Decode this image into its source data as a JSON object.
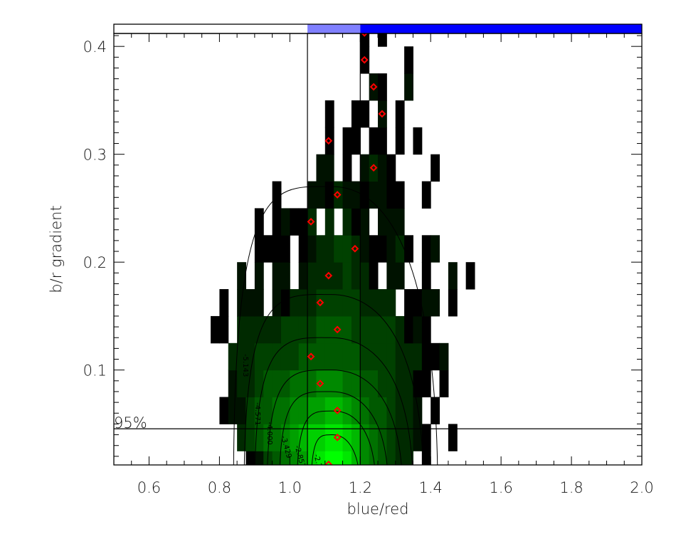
{
  "chart_data": {
    "type": "heatmap",
    "title": "",
    "xlabel": "blue/red",
    "ylabel": "b/r gradient",
    "xlim": [
      0.5,
      2.0
    ],
    "ylim": [
      0.012,
      0.412
    ],
    "x_ticks": [
      0.6,
      0.8,
      1.0,
      1.2,
      1.4,
      1.6,
      1.8,
      2.0
    ],
    "x_tick_labels": [
      "0.6",
      "0.8",
      "1.0",
      "1.2",
      "1.4",
      "1.6",
      "1.8",
      "2.0"
    ],
    "x_minor_step": 0.05,
    "y_ticks": [
      0.1,
      0.2,
      0.3,
      0.4
    ],
    "y_tick_labels": [
      "0.1",
      "0.2",
      "0.3",
      "0.4"
    ],
    "y_minor_step": 0.01,
    "bins": {
      "x_start": 0.775,
      "x_width": 0.025,
      "y_start": 0.0,
      "y_height": 0.025
    },
    "grid_rows_bottom_to_top": [
      [
        0,
        0,
        0,
        0,
        1,
        2,
        4,
        5,
        6,
        7,
        8,
        10,
        11,
        12,
        12,
        11,
        9,
        7,
        6,
        5,
        4,
        3,
        3,
        0,
        1,
        0,
        0,
        0,
        0,
        0
      ],
      [
        0,
        0,
        0,
        3,
        4,
        5,
        6,
        6,
        7,
        8,
        9,
        10,
        10,
        11,
        11,
        10,
        9,
        7,
        6,
        5,
        4,
        3,
        3,
        2,
        1,
        0,
        0,
        1,
        0,
        0
      ],
      [
        0,
        1,
        2,
        2,
        4,
        5,
        5,
        6,
        6,
        7,
        7,
        8,
        8,
        9,
        9,
        8,
        7,
        6,
        5,
        5,
        4,
        3,
        3,
        2,
        0,
        1,
        0,
        0,
        0,
        0
      ],
      [
        0,
        0,
        2,
        3,
        3,
        4,
        5,
        5,
        5,
        6,
        6,
        6,
        7,
        7,
        7,
        6,
        6,
        5,
        5,
        4,
        4,
        3,
        3,
        1,
        1,
        0,
        1,
        0,
        0,
        0
      ],
      [
        0,
        0,
        3,
        3,
        3,
        4,
        4,
        4,
        4,
        4,
        5,
        5,
        5,
        5,
        5,
        5,
        5,
        4,
        4,
        4,
        4,
        3,
        3,
        3,
        1,
        1,
        2,
        0,
        0,
        0
      ],
      [
        1,
        1,
        0,
        3,
        3,
        3,
        3,
        3,
        4,
        4,
        4,
        4,
        5,
        5,
        5,
        5,
        4,
        4,
        4,
        4,
        4,
        3,
        1,
        2,
        1,
        0,
        0,
        0,
        0,
        0
      ],
      [
        0,
        1,
        0,
        2,
        2,
        2,
        0,
        2,
        1,
        3,
        3,
        3,
        4,
        4,
        4,
        4,
        4,
        3,
        3,
        3,
        3,
        0,
        1,
        1,
        2,
        2,
        0,
        1,
        0,
        0
      ],
      [
        0,
        0,
        0,
        2,
        0,
        2,
        0,
        2,
        2,
        0,
        2,
        3,
        3,
        3,
        3,
        4,
        3,
        3,
        1,
        0,
        2,
        2,
        0,
        0,
        1,
        0,
        0,
        2,
        0,
        1
      ],
      [
        0,
        0,
        0,
        0,
        0,
        1,
        1,
        1,
        1,
        0,
        1,
        2,
        3,
        3,
        4,
        4,
        3,
        2,
        1,
        1,
        2,
        3,
        1,
        0,
        1,
        2,
        0,
        0,
        0,
        0
      ],
      [
        0,
        0,
        0,
        0,
        0,
        1,
        0,
        1,
        2,
        1,
        1,
        3,
        0,
        3,
        0,
        3,
        1,
        2,
        0,
        2,
        2,
        2,
        0,
        0,
        0,
        0,
        0,
        0,
        0,
        0
      ],
      [
        0,
        0,
        0,
        0,
        0,
        0,
        0,
        1,
        0,
        0,
        0,
        2,
        2,
        1,
        3,
        2,
        2,
        1,
        2,
        2,
        1,
        1,
        0,
        0,
        1,
        0,
        0,
        0,
        0,
        0
      ],
      [
        0,
        0,
        0,
        0,
        0,
        0,
        0,
        0,
        0,
        0,
        0,
        0,
        2,
        2,
        0,
        1,
        0,
        2,
        3,
        2,
        1,
        0,
        0,
        0,
        0,
        1,
        0,
        0,
        0,
        0
      ],
      [
        0,
        0,
        0,
        0,
        0,
        0,
        0,
        0,
        0,
        0,
        0,
        0,
        0,
        1,
        0,
        1,
        1,
        0,
        1,
        1,
        0,
        1,
        0,
        1,
        0,
        0,
        0,
        0,
        0,
        0
      ],
      [
        0,
        0,
        0,
        0,
        0,
        0,
        0,
        0,
        0,
        0,
        0,
        0,
        0,
        1,
        0,
        0,
        1,
        1,
        0,
        2,
        0,
        1,
        0,
        0,
        0,
        0,
        0,
        0,
        0,
        0
      ],
      [
        0,
        0,
        0,
        0,
        0,
        0,
        0,
        0,
        0,
        0,
        0,
        0,
        0,
        0,
        0,
        0,
        0,
        0,
        2,
        1,
        0,
        0,
        2,
        0,
        0,
        0,
        0,
        0,
        0,
        0
      ],
      [
        0,
        0,
        0,
        0,
        0,
        0,
        0,
        0,
        0,
        0,
        0,
        0,
        0,
        0,
        0,
        0,
        0,
        1,
        0,
        0,
        0,
        0,
        1,
        0,
        0,
        0,
        0,
        0,
        0,
        0
      ],
      [
        0,
        0,
        0,
        0,
        0,
        0,
        0,
        0,
        0,
        0,
        0,
        0,
        0,
        0,
        0,
        0,
        0,
        1,
        0,
        1,
        0,
        0,
        0,
        0,
        0,
        0,
        0,
        0,
        0,
        0
      ]
    ],
    "medians": {
      "x": [
        1.11,
        1.135,
        1.135,
        1.086,
        1.06,
        1.135,
        1.086,
        1.11,
        1.185,
        1.06,
        1.135,
        1.238,
        1.11,
        1.262,
        1.238,
        1.212,
        1.212
      ],
      "y": [
        0.0125,
        0.0375,
        0.0625,
        0.0875,
        0.1125,
        0.1375,
        0.1625,
        0.1875,
        0.2125,
        0.2375,
        0.2625,
        0.2875,
        0.3125,
        0.3375,
        0.3625,
        0.3875,
        0.4125
      ]
    },
    "contours": [
      {
        "label": "-5.143",
        "x_range": [
          0.84,
          1.42
        ],
        "peak_y": 0.27
      },
      {
        "label": "-4.571",
        "x_range": [
          0.87,
          1.38
        ],
        "peak_y": 0.17
      },
      {
        "label": "-4.000",
        "x_range": [
          0.9,
          1.35
        ],
        "peak_y": 0.13
      },
      {
        "label": "-3.429",
        "x_range": [
          0.935,
          1.32
        ],
        "peak_y": 0.1
      },
      {
        "label": "-2.857",
        "x_range": [
          0.97,
          1.28
        ],
        "peak_y": 0.08
      },
      {
        "label": "-2.286",
        "x_range": [
          1.02,
          1.245
        ],
        "peak_y": 0.062
      },
      {
        "label": "",
        "x_range": [
          1.06,
          1.2
        ],
        "peak_y": 0.04
      }
    ],
    "vertical_lines": [
      1.05,
      1.2
    ],
    "horizontal_line": {
      "y": 0.0455,
      "label": "95%"
    },
    "top_bar": [
      {
        "from": 0.5,
        "to": 1.05,
        "color": "#ffffff"
      },
      {
        "from": 1.05,
        "to": 1.2,
        "color": "#8080ff"
      },
      {
        "from": 1.2,
        "to": 2.0,
        "color": "#0000ff"
      }
    ],
    "median_color": "#ff0000"
  }
}
